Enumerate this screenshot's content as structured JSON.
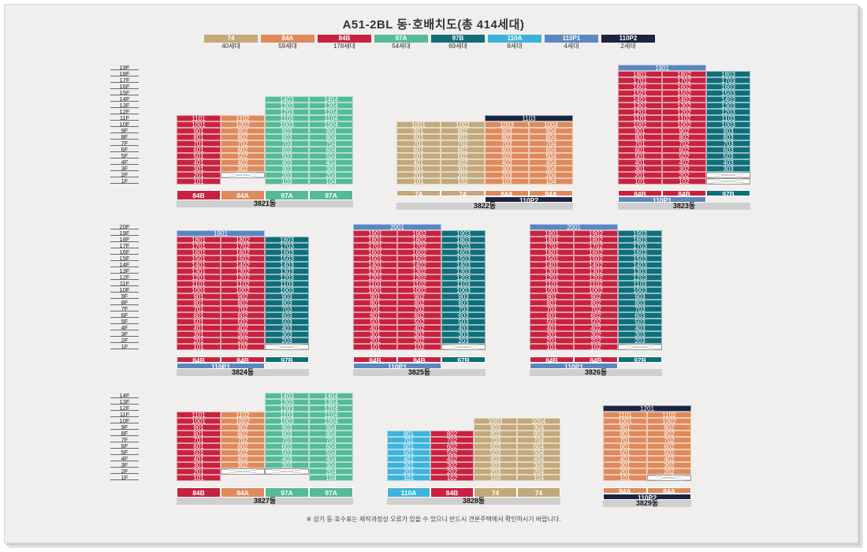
{
  "title": "A51-2BL 동·호배치도(총 414세대)",
  "note": "※ 상기 동·호수표는 제작과정상 오류가 있을 수 있으니 반드시 견본주택에서 확인하시기 바랍니다.",
  "colors": {
    "74": "#c2a87a",
    "84A": "#df8a5c",
    "84B": "#c8223f",
    "97A": "#55bb96",
    "97B": "#0e6e79",
    "110A": "#3db3dc",
    "110P1": "#5b86c0",
    "110P2": "#1b2440"
  },
  "legend": [
    {
      "type": "74",
      "count": "40세대"
    },
    {
      "type": "84A",
      "count": "59세대"
    },
    {
      "type": "84B",
      "count": "178세대"
    },
    {
      "type": "97A",
      "count": "54세대"
    },
    {
      "type": "97B",
      "count": "69세대"
    },
    {
      "type": "110A",
      "count": "8세대"
    },
    {
      "type": "110P1",
      "count": "4세대"
    },
    {
      "type": "110P2",
      "count": "2세대"
    }
  ],
  "buildings": [
    {
      "name": "3821동",
      "cols": [
        {
          "type": "84B",
          "top": 11,
          "bottom": 1
        },
        {
          "type": "84A",
          "top": 11,
          "bottom": 3,
          "empty": [
            2
          ]
        },
        {
          "type": "97A",
          "top": 14,
          "bottom": 1
        },
        {
          "type": "97A",
          "top": 14,
          "bottom": 1
        }
      ],
      "labels": [
        "84B",
        "84A",
        "97A",
        "97A"
      ]
    },
    {
      "name": "3822동",
      "cols": [
        {
          "type": "74",
          "top": 10,
          "bottom": 1
        },
        {
          "type": "74",
          "top": 10,
          "bottom": 1
        },
        {
          "type": "84A",
          "top": 10,
          "bottom": 1
        },
        {
          "type": "84A",
          "top": 10,
          "bottom": 1
        }
      ],
      "penthouse": {
        "label": "1103",
        "type": "110P2",
        "span": [
          2,
          3
        ]
      },
      "labels": [
        "74",
        "74",
        "84A",
        "84A"
      ],
      "subLabel": {
        "text": "110P2",
        "span": [
          2,
          3
        ],
        "type": "110P2"
      }
    },
    {
      "name": "3823동",
      "cols": [
        {
          "type": "84B",
          "top": 18,
          "bottom": 1
        },
        {
          "type": "84B",
          "top": 18,
          "bottom": 1
        },
        {
          "type": "97B",
          "top": 18,
          "bottom": 3,
          "empty": [
            2,
            1
          ]
        }
      ],
      "penthouse": {
        "label": "1901",
        "type": "110P1",
        "span": [
          0,
          1
        ]
      },
      "labels": [
        "84B",
        "84B",
        "97B"
      ],
      "subLabel": {
        "text": "110P1",
        "span": [
          0,
          1
        ],
        "type": "110P1"
      }
    },
    {
      "name": "3824동",
      "cols": [
        {
          "type": "84B",
          "top": 18,
          "bottom": 1
        },
        {
          "type": "84B",
          "top": 18,
          "bottom": 1
        },
        {
          "type": "97B",
          "top": 18,
          "bottom": 2,
          "empty": [
            1
          ]
        }
      ],
      "penthouse": {
        "label": "1901",
        "type": "110P1",
        "span": [
          0,
          1
        ]
      },
      "labels": [
        "84B",
        "84B",
        "97B"
      ],
      "subLabel": {
        "text": "110P1",
        "span": [
          0,
          1
        ],
        "type": "110P1"
      }
    },
    {
      "name": "3825동",
      "cols": [
        {
          "type": "84B",
          "top": 19,
          "bottom": 1
        },
        {
          "type": "84B",
          "top": 19,
          "bottom": 1
        },
        {
          "type": "97B",
          "top": 19,
          "bottom": 2,
          "empty": [
            1
          ]
        }
      ],
      "penthouse": {
        "label": "2001",
        "type": "110P1",
        "span": [
          0,
          1
        ]
      },
      "labels": [
        "84B",
        "84B",
        "97B"
      ],
      "subLabel": {
        "text": "110P1",
        "span": [
          0,
          1
        ],
        "type": "110P1"
      }
    },
    {
      "name": "3826동",
      "cols": [
        {
          "type": "84B",
          "top": 19,
          "bottom": 1
        },
        {
          "type": "84B",
          "top": 19,
          "bottom": 1
        },
        {
          "type": "97B",
          "top": 19,
          "bottom": 2,
          "empty": [
            1
          ]
        }
      ],
      "penthouse": {
        "label": "2001",
        "type": "110P1",
        "span": [
          0,
          1
        ]
      },
      "labels": [
        "84B",
        "84B",
        "97B"
      ],
      "subLabel": {
        "text": "110P1",
        "span": [
          0,
          1
        ],
        "type": "110P1"
      }
    },
    {
      "name": "3827동",
      "cols": [
        {
          "type": "84B",
          "top": 11,
          "bottom": 1
        },
        {
          "type": "84A",
          "top": 11,
          "bottom": 3,
          "empty": [
            2
          ]
        },
        {
          "type": "97A",
          "top": 14,
          "bottom": 3,
          "empty": [
            2
          ]
        },
        {
          "type": "97A",
          "top": 14,
          "bottom": 1
        }
      ],
      "labels": [
        "84B",
        "84A",
        "97A",
        "97A"
      ]
    },
    {
      "name": "3828동",
      "cols": [
        {
          "type": "110A",
          "top": 8,
          "bottom": 1
        },
        {
          "type": "84B",
          "top": 8,
          "bottom": 1
        },
        {
          "type": "74",
          "top": 10,
          "bottom": 1
        },
        {
          "type": "74",
          "top": 10,
          "bottom": 1
        }
      ],
      "labels": [
        "110A",
        "84B",
        "74",
        "74"
      ]
    },
    {
      "name": "3829동",
      "cols": [
        {
          "type": "84A",
          "top": 11,
          "bottom": 1
        },
        {
          "type": "84A",
          "top": 11,
          "bottom": 2,
          "empty": [
            1
          ]
        }
      ],
      "penthouse": {
        "label": "1201",
        "type": "110P2",
        "span": [
          0,
          1
        ]
      },
      "labels": [
        "84A",
        "84A"
      ],
      "subLabel": {
        "text": "110P2",
        "span": [
          0,
          1
        ],
        "type": "110P2"
      }
    }
  ],
  "floorScales": [
    {
      "floors": [
        "19F",
        "18F",
        "17F",
        "16F",
        "15F",
        "14F",
        "13F",
        "12F",
        "11F",
        "10F",
        "9F",
        "8F",
        "7F",
        "6F",
        "5F",
        "4F",
        "3F",
        "2F",
        "1F"
      ]
    },
    {
      "floors": [
        "20F",
        "19F",
        "18F",
        "17F",
        "16F",
        "15F",
        "14F",
        "13F",
        "12F",
        "11F",
        "10F",
        "9F",
        "8F",
        "7F",
        "6F",
        "5F",
        "4F",
        "3F",
        "2F",
        "1F"
      ]
    },
    {
      "floors": [
        "14F",
        "13F",
        "12F",
        "11F",
        "10F",
        "9F",
        "8F",
        "7F",
        "6F",
        "5F",
        "4F",
        "3F",
        "2F",
        "1F"
      ]
    }
  ]
}
